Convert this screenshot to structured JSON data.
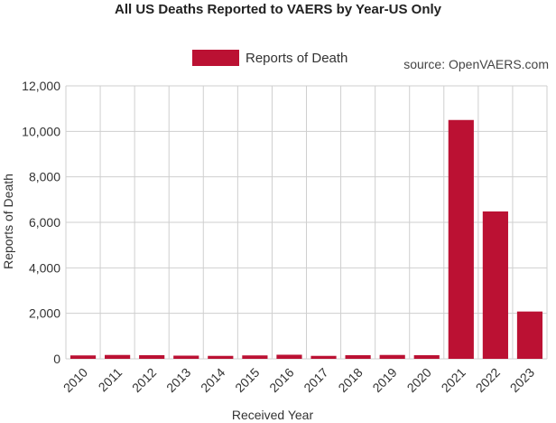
{
  "chart_data": {
    "type": "bar",
    "title": "All US Deaths Reported to VAERS by Year-US Only",
    "source": "source: OpenVAERS.com",
    "xlabel": "Received Year",
    "ylabel": "Reports of Death",
    "categories": [
      "2010",
      "2011",
      "2012",
      "2013",
      "2014",
      "2015",
      "2016",
      "2017",
      "2018",
      "2019",
      "2020",
      "2021",
      "2022",
      "2023"
    ],
    "series": [
      {
        "name": "Reports of Death",
        "color": "#bb1133",
        "values": [
          150,
          170,
          160,
          140,
          130,
          150,
          180,
          130,
          160,
          170,
          160,
          10500,
          6480,
          2080
        ]
      }
    ],
    "ylim": [
      0,
      12000
    ],
    "yticks": [
      0,
      2000,
      4000,
      6000,
      8000,
      10000,
      12000
    ],
    "ytick_labels": [
      "0",
      "2,000",
      "4,000",
      "6,000",
      "8,000",
      "10,000",
      "12,000"
    ],
    "grid": true,
    "legend": "top-center"
  }
}
